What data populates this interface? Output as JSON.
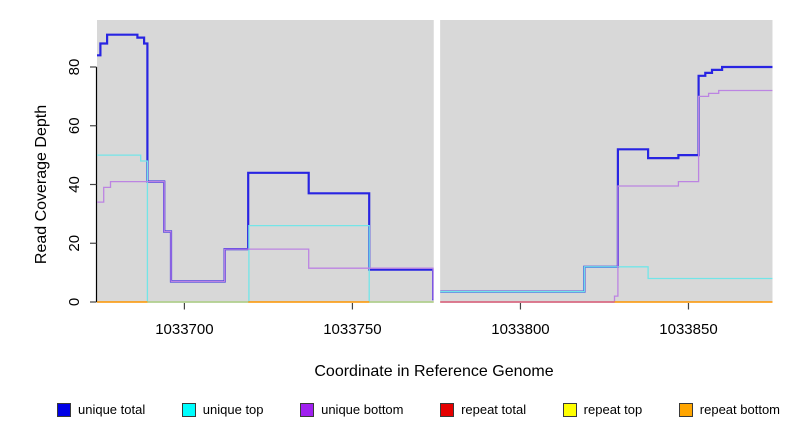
{
  "chart_data": {
    "type": "line",
    "title": "",
    "xlabel": "Coordinate in Reference Genome",
    "ylabel": "Read Coverage Depth",
    "x_ticks": [
      1033700,
      1033750,
      1033800,
      1033850
    ],
    "y_ticks": [
      0,
      20,
      40,
      60,
      80
    ],
    "xlim": [
      1033674,
      1033875
    ],
    "ylim": [
      0,
      96
    ],
    "grid": false,
    "plot_background": "#d8d8d8",
    "gap_x": [
      1033774.2,
      1033776.1
    ],
    "legend_position": "bottom",
    "series": [
      {
        "name": "unique total",
        "color": "#2824e2",
        "width": 2.2,
        "segments": [
          {
            "points": [
              [
                1033674,
                84
              ],
              [
                1033675,
                88
              ],
              [
                1033677,
                91
              ],
              [
                1033686,
                90
              ],
              [
                1033688,
                88
              ],
              [
                1033689,
                41
              ],
              [
                1033694,
                24
              ],
              [
                1033696,
                7
              ],
              [
                1033712,
                18
              ],
              [
                1033719,
                44
              ],
              [
                1033737,
                37
              ],
              [
                1033755,
                11
              ],
              [
                1033774,
                1
              ]
            ],
            "end": 1033774.2
          },
          {
            "points": [
              [
                1033776.1,
                3.5
              ],
              [
                1033819,
                12
              ],
              [
                1033829,
                52
              ],
              [
                1033838,
                49
              ],
              [
                1033847,
                50
              ],
              [
                1033853,
                77
              ],
              [
                1033855,
                78
              ],
              [
                1033857,
                79
              ],
              [
                1033860,
                80
              ]
            ],
            "end": 1033875
          }
        ]
      },
      {
        "name": "unique top",
        "color": "#73e5e8",
        "width": 1.3,
        "segments": [
          {
            "points": [
              [
                1033674,
                50
              ],
              [
                1033687,
                48
              ],
              [
                1033689,
                0
              ]
            ],
            "end": 1033689
          },
          {
            "points": [
              [
                1033719,
                0
              ],
              [
                1033719.2,
                26
              ],
              [
                1033755,
                0
              ]
            ],
            "end": 1033755
          },
          {
            "points": [
              [
                1033776.1,
                3.5
              ],
              [
                1033819,
                12
              ],
              [
                1033838,
                8
              ]
            ],
            "end": 1033875
          }
        ]
      },
      {
        "name": "unique bottom",
        "color": "#bc84e2",
        "width": 1.3,
        "segments": [
          {
            "points": [
              [
                1033674,
                34
              ],
              [
                1033676,
                39
              ],
              [
                1033678,
                41
              ],
              [
                1033694,
                24
              ],
              [
                1033696,
                7
              ],
              [
                1033712,
                18
              ],
              [
                1033737,
                11.5
              ],
              [
                1033774,
                1
              ]
            ],
            "end": 1033774.2
          },
          {
            "points": [
              [
                1033827,
                0
              ],
              [
                1033828,
                2
              ],
              [
                1033829,
                39.5
              ],
              [
                1033847,
                41
              ],
              [
                1033853,
                70
              ],
              [
                1033856,
                71
              ],
              [
                1033859,
                72
              ]
            ],
            "end": 1033875
          }
        ]
      },
      {
        "name": "repeat total",
        "color": "#e20000",
        "width": 1.3,
        "segments": [
          {
            "points": [
              [
                1033674,
                0
              ]
            ],
            "end": 1033774.2
          },
          {
            "points": [
              [
                1033776.1,
                0
              ]
            ],
            "end": 1033875
          }
        ]
      },
      {
        "name": "repeat top",
        "color": "#f2f200",
        "width": 1.3,
        "segments": [
          {
            "points": [
              [
                1033674,
                0
              ]
            ],
            "end": 1033774.2
          },
          {
            "points": [
              [
                1033776.1,
                0
              ]
            ],
            "end": 1033875
          }
        ]
      },
      {
        "name": "repeat bottom",
        "color": "#ff9d0d",
        "width": 1.3,
        "segments": [
          {
            "points": [
              [
                1033674,
                0
              ]
            ],
            "end": 1033774.2
          },
          {
            "points": [
              [
                1033776.1,
                0
              ]
            ],
            "end": 1033875
          }
        ]
      }
    ],
    "baseline_overlays": [
      {
        "x0": 1033689,
        "x1": 1033719,
        "color": "#a6dcab"
      },
      {
        "x0": 1033755,
        "x1": 1033774.2,
        "color": "#a6dcab"
      },
      {
        "x0": 1033776.1,
        "x1": 1033828,
        "color": "#d4679e"
      }
    ]
  },
  "legend": {
    "items": [
      {
        "label": "unique total",
        "color": "#0000e6"
      },
      {
        "label": "unique top",
        "color": "#00ffff"
      },
      {
        "label": "unique bottom",
        "color": "#a020f0"
      },
      {
        "label": "repeat total",
        "color": "#e60000"
      },
      {
        "label": "repeat top",
        "color": "#ffff00"
      },
      {
        "label": "repeat bottom",
        "color": "#ffa500"
      }
    ]
  },
  "axes": {
    "x_title": "Coordinate in Reference Genome",
    "y_title": "Read Coverage Depth"
  }
}
